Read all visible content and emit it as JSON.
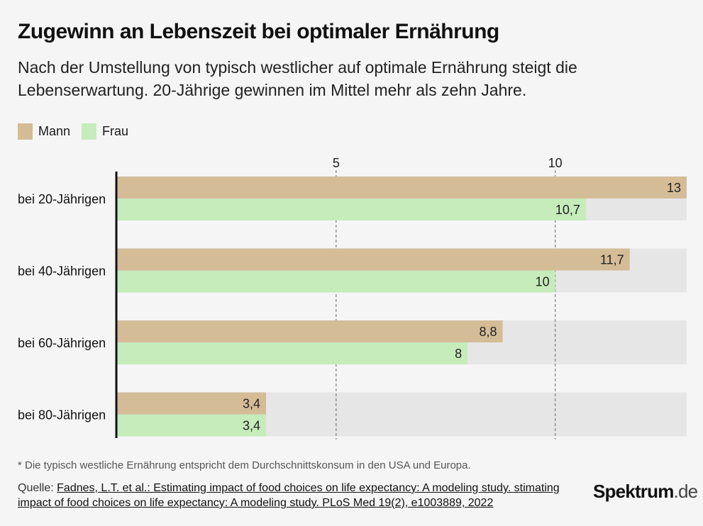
{
  "header": {
    "title": "Zugewinn an Lebenszeit bei optimaler Ernährung",
    "subtitle": "Nach der Umstellung von typisch westlicher auf optimale Ernährung steigt die Lebenserwartung. 20-Jährige gewinnen im Mittel mehr als zehn Jahre."
  },
  "legend": [
    {
      "label": "Mann",
      "color": "#d4bc97"
    },
    {
      "label": "Frau",
      "color": "#c5ecba"
    }
  ],
  "chart_data": {
    "type": "bar",
    "orientation": "horizontal",
    "categories": [
      "bei 20-Jährigen",
      "bei 40-Jährigen",
      "bei 60-Jährigen",
      "bei 80-Jährigen"
    ],
    "series": [
      {
        "name": "Mann",
        "values": [
          13,
          11.7,
          8.8,
          3.4
        ],
        "labels": [
          "13",
          "11,7",
          "8,8",
          "3,4"
        ],
        "color": "#d4bc97"
      },
      {
        "name": "Frau",
        "values": [
          10.7,
          10,
          8,
          3.4
        ],
        "labels": [
          "10,7",
          "10",
          "8",
          "3,4"
        ],
        "color": "#c5ecba"
      }
    ],
    "xlim": [
      0,
      13
    ],
    "xticks": [
      5,
      10
    ],
    "grid": "dashed vertical lines at ticks",
    "legend_position": "top-left",
    "background_bar_color": "#e6e6e6"
  },
  "footer": {
    "footnote": "* Die typisch westliche Ernährung entspricht dem Durchschnittskonsum in den USA und Europa.",
    "source_label": "Quelle:",
    "source_text": "Fadnes, L.T. et al.: Estimating impact of food choices on life expectancy: A modeling study. stimating impact of food choices on life expectancy: A modeling study. PLoS Med 19(2), e1003889, 2022",
    "brand_main": "Spektrum",
    "brand_tld": ".de"
  }
}
